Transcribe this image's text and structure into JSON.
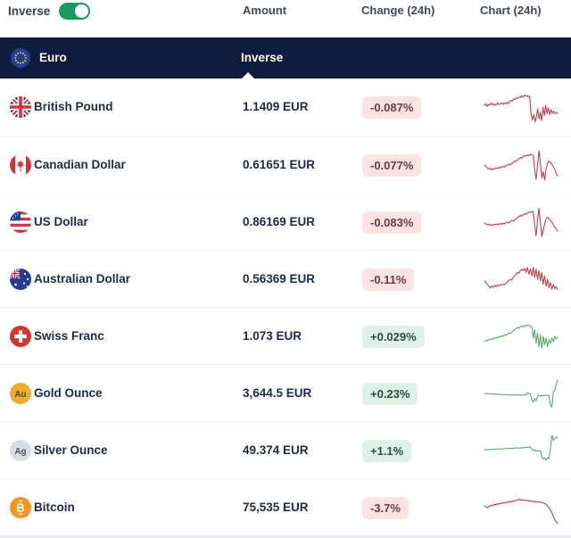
{
  "toolbar": {
    "inverse_label": "Inverse",
    "toggle_on": true,
    "toggle_color": "#179a63"
  },
  "columns": {
    "amount": "Amount",
    "change": "Change (24h)",
    "chart": "Chart (24h)"
  },
  "group_header": {
    "name": "Euro",
    "flag": "euro",
    "amount_label": "Inverse",
    "background": "#0f1c3f"
  },
  "status_colors": {
    "down_badge_bg": "#fbe3e4",
    "down_badge_text": "#73383f",
    "up_badge_bg": "#def2e6",
    "up_badge_text": "#27513e",
    "down_line": "#b9414e",
    "up_line": "#57aa6c"
  },
  "rows": [
    {
      "name": "British Pound",
      "flag": "uk",
      "amount": "1.1409 EUR",
      "change": "-0.087%",
      "direction": "down",
      "spark": [
        0.55,
        0.6,
        0.52,
        0.58,
        0.55,
        0.62,
        0.56,
        0.6,
        0.55,
        0.58,
        0.62,
        0.57,
        0.6,
        0.63,
        0.58,
        0.62,
        0.6,
        0.64,
        0.6,
        0.66,
        0.7,
        0.68,
        0.74,
        0.72,
        0.78,
        0.76,
        0.8,
        0.78,
        0.83,
        0.8,
        0.85,
        0.82,
        0.84,
        0.8,
        0.82,
        0.3,
        0.12,
        0.28,
        0.06,
        0.2,
        0.45,
        0.15,
        0.35,
        0.1,
        0.5,
        0.25,
        0.55,
        0.3,
        0.48,
        0.28,
        0.42,
        0.32,
        0.38,
        0.3,
        0.34,
        0.32
      ]
    },
    {
      "name": "Canadian Dollar",
      "flag": "canada",
      "amount": "0.61651 EUR",
      "change": "-0.077%",
      "direction": "down",
      "spark": [
        0.5,
        0.46,
        0.42,
        0.38,
        0.4,
        0.36,
        0.4,
        0.38,
        0.42,
        0.4,
        0.43,
        0.41,
        0.44,
        0.46,
        0.44,
        0.48,
        0.5,
        0.53,
        0.5,
        0.55,
        0.58,
        0.62,
        0.6,
        0.65,
        0.68,
        0.72,
        0.7,
        0.75,
        0.78,
        0.76,
        0.8,
        0.78,
        0.82,
        0.8,
        0.78,
        0.35,
        0.08,
        0.5,
        0.92,
        0.55,
        0.12,
        0.3,
        0.06,
        0.4,
        0.55,
        0.62,
        0.58,
        0.52,
        0.45,
        0.38,
        0.25,
        0.18
      ]
    },
    {
      "name": "US Dollar",
      "flag": "us",
      "amount": "0.86169 EUR",
      "change": "-0.083%",
      "direction": "down",
      "spark": [
        0.48,
        0.45,
        0.42,
        0.44,
        0.4,
        0.43,
        0.41,
        0.44,
        0.42,
        0.45,
        0.43,
        0.46,
        0.44,
        0.47,
        0.45,
        0.48,
        0.5,
        0.48,
        0.52,
        0.55,
        0.53,
        0.57,
        0.6,
        0.63,
        0.66,
        0.7,
        0.68,
        0.72,
        0.75,
        0.73,
        0.77,
        0.8,
        0.78,
        0.82,
        0.8,
        0.4,
        0.1,
        0.55,
        0.9,
        0.5,
        0.08,
        0.25,
        0.45,
        0.6,
        0.65,
        0.6,
        0.55,
        0.5,
        0.42,
        0.35,
        0.3,
        0.25
      ]
    },
    {
      "name": "Australian Dollar",
      "flag": "australia",
      "amount": "0.56369 EUR",
      "change": "-0.11%",
      "direction": "down",
      "spark": [
        0.45,
        0.4,
        0.35,
        0.3,
        0.25,
        0.3,
        0.26,
        0.32,
        0.28,
        0.33,
        0.3,
        0.35,
        0.32,
        0.36,
        0.34,
        0.38,
        0.42,
        0.46,
        0.5,
        0.48,
        0.55,
        0.6,
        0.65,
        0.7,
        0.68,
        0.75,
        0.8,
        0.76,
        0.82,
        0.7,
        0.85,
        0.65,
        0.8,
        0.6,
        0.85,
        0.55,
        0.8,
        0.5,
        0.75,
        0.45,
        0.7,
        0.35,
        0.6,
        0.3,
        0.5,
        0.25,
        0.4,
        0.2,
        0.35,
        0.22,
        0.28,
        0.2
      ]
    },
    {
      "name": "Swiss Franc",
      "flag": "swiss",
      "amount": "1.073 EUR",
      "change": "+0.029%",
      "direction": "up",
      "spark": [
        0.35,
        0.38,
        0.36,
        0.4,
        0.42,
        0.4,
        0.45,
        0.43,
        0.47,
        0.45,
        0.5,
        0.48,
        0.52,
        0.5,
        0.55,
        0.53,
        0.57,
        0.6,
        0.58,
        0.62,
        0.65,
        0.7,
        0.73,
        0.76,
        0.74,
        0.78,
        0.8,
        0.78,
        0.82,
        0.8,
        0.84,
        0.82,
        0.8,
        0.78,
        0.45,
        0.7,
        0.3,
        0.6,
        0.2,
        0.55,
        0.15,
        0.5,
        0.25,
        0.45,
        0.2,
        0.4,
        0.3,
        0.45,
        0.35,
        0.5,
        0.42,
        0.46
      ]
    },
    {
      "name": "Gold Ounce",
      "flag": "gold",
      "amount": "3,644.5 EUR",
      "change": "+0.23%",
      "direction": "up",
      "spark": [
        0.5,
        0.5,
        0.49,
        0.5,
        0.49,
        0.48,
        0.49,
        0.48,
        0.48,
        0.47,
        0.48,
        0.47,
        0.47,
        0.46,
        0.47,
        0.46,
        0.46,
        0.45,
        0.46,
        0.45,
        0.45,
        0.46,
        0.45,
        0.46,
        0.45,
        0.46,
        0.45,
        0.45,
        0.46,
        0.45,
        0.52,
        0.5,
        0.48,
        0.3,
        0.25,
        0.35,
        0.28,
        0.4,
        0.45,
        0.42,
        0.44,
        0.43,
        0.45,
        0.44,
        0.45,
        0.44,
        0.15,
        0.1,
        0.55,
        0.6,
        0.75,
        0.9
      ]
    },
    {
      "name": "Silver Ounce",
      "flag": "silver",
      "amount": "49.374 EUR",
      "change": "+1.1%",
      "direction": "up",
      "spark": [
        0.52,
        0.53,
        0.52,
        0.53,
        0.53,
        0.54,
        0.53,
        0.54,
        0.54,
        0.55,
        0.54,
        0.55,
        0.55,
        0.55,
        0.56,
        0.55,
        0.56,
        0.56,
        0.57,
        0.56,
        0.57,
        0.57,
        0.58,
        0.57,
        0.58,
        0.58,
        0.59,
        0.58,
        0.59,
        0.6,
        0.59,
        0.6,
        0.6,
        0.55,
        0.5,
        0.52,
        0.48,
        0.5,
        0.49,
        0.5,
        0.3,
        0.25,
        0.28,
        0.22,
        0.3,
        0.26,
        0.55,
        0.95,
        0.8,
        0.85,
        0.9,
        0.88
      ]
    },
    {
      "name": "Bitcoin",
      "flag": "bitcoin",
      "amount": "75,535 EUR",
      "change": "-3.7%",
      "direction": "down",
      "spark": [
        0.55,
        0.52,
        0.5,
        0.53,
        0.55,
        0.58,
        0.56,
        0.6,
        0.58,
        0.62,
        0.6,
        0.63,
        0.62,
        0.65,
        0.63,
        0.66,
        0.65,
        0.68,
        0.66,
        0.7,
        0.68,
        0.72,
        0.7,
        0.73,
        0.75,
        0.72,
        0.74,
        0.71,
        0.73,
        0.7,
        0.72,
        0.69,
        0.71,
        0.68,
        0.7,
        0.67,
        0.68,
        0.66,
        0.67,
        0.65,
        0.66,
        0.64,
        0.62,
        0.6,
        0.55,
        0.5,
        0.42,
        0.35,
        0.25,
        0.15,
        0.08,
        0.04
      ]
    }
  ]
}
